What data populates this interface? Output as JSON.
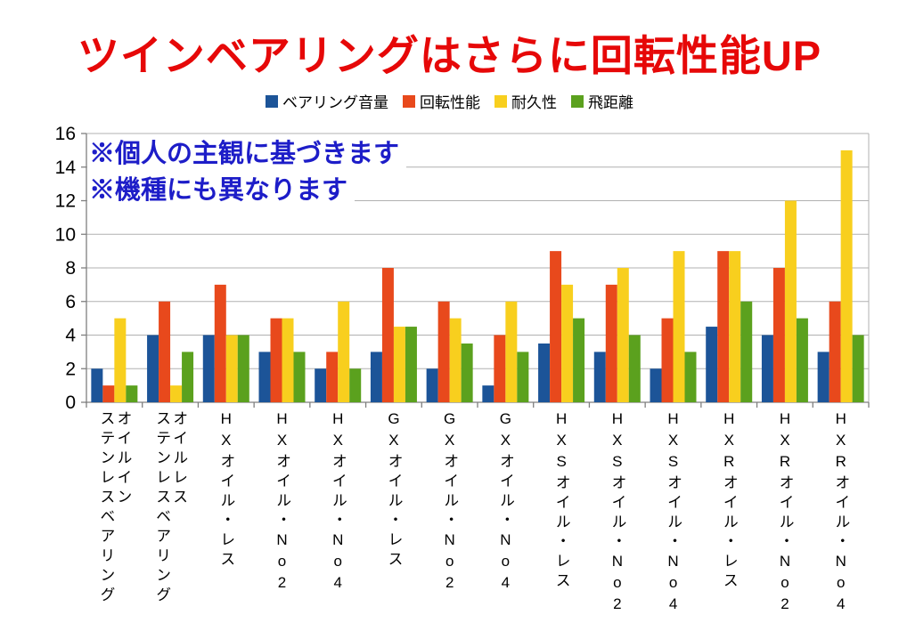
{
  "colors": {
    "title": "#e60808",
    "annotation": "#1d1dc8",
    "grid": "#b0b0b0",
    "axis": "#7f7f7f",
    "background": "#ffffff"
  },
  "chart_data": {
    "type": "bar",
    "title": "ツインベアリングはさらに回転性能UP",
    "annotations": [
      "※個人の主観に基づきます",
      "※機種にも異なります"
    ],
    "legend_position": "top",
    "grid": true,
    "xlabel": "",
    "ylabel": "",
    "ylim": [
      0,
      16
    ],
    "yticks": [
      0,
      2,
      4,
      6,
      8,
      10,
      12,
      14,
      16
    ],
    "categories": [
      {
        "label": "オイルインステンレスベアリング",
        "lines": [
          "オイルイン",
          "ステンレスベアリング"
        ]
      },
      {
        "label": "オイルレスステンレスベアリング",
        "lines": [
          "オイルレス",
          "ステンレスベアリング"
        ]
      },
      {
        "label": "HXオイル・レス",
        "lines": [
          "HXオイル・レス"
        ]
      },
      {
        "label": "HXオイル・No2",
        "lines": [
          "HXオイル・No2"
        ]
      },
      {
        "label": "HXオイル・No4",
        "lines": [
          "HXオイル・No4"
        ]
      },
      {
        "label": "GXオイル・レス",
        "lines": [
          "GXオイル・レス"
        ]
      },
      {
        "label": "GXオイル・No2",
        "lines": [
          "GXオイル・No2"
        ]
      },
      {
        "label": "GXオイル・No4",
        "lines": [
          "GXオイル・No4"
        ]
      },
      {
        "label": "HXSオイル・レス",
        "lines": [
          "HXSオイル・レス"
        ]
      },
      {
        "label": "HXSオイル・No2",
        "lines": [
          "HXSオイル・No2"
        ]
      },
      {
        "label": "HXSオイル・No4",
        "lines": [
          "HXSオイル・No4"
        ]
      },
      {
        "label": "HXRオイル・レス",
        "lines": [
          "HXRオイル・レス"
        ]
      },
      {
        "label": "HXRオイル・No2",
        "lines": [
          "HXRオイル・No2"
        ]
      },
      {
        "label": "HXRオイル・No4",
        "lines": [
          "HXRオイル・No4"
        ]
      }
    ],
    "series": [
      {
        "name": "ベアリング音量",
        "color": "#1c5498",
        "values": [
          2,
          4,
          4,
          3,
          2,
          3,
          2,
          1,
          3.5,
          3,
          2,
          4.5,
          4,
          3
        ]
      },
      {
        "name": "回転性能",
        "color": "#e8491c",
        "values": [
          1,
          6,
          7,
          5,
          3,
          8,
          6,
          4,
          9,
          7,
          5,
          9,
          8,
          6
        ]
      },
      {
        "name": "耐久性",
        "color": "#f8cf1e",
        "values": [
          5,
          1,
          4,
          5,
          6,
          4.5,
          5,
          6,
          7,
          8,
          9,
          9,
          12,
          15
        ]
      },
      {
        "name": "飛距離",
        "color": "#5ba11e",
        "values": [
          1,
          3,
          4,
          3,
          2,
          4.5,
          3.5,
          3,
          5,
          4,
          3,
          6,
          5,
          4
        ]
      }
    ]
  }
}
